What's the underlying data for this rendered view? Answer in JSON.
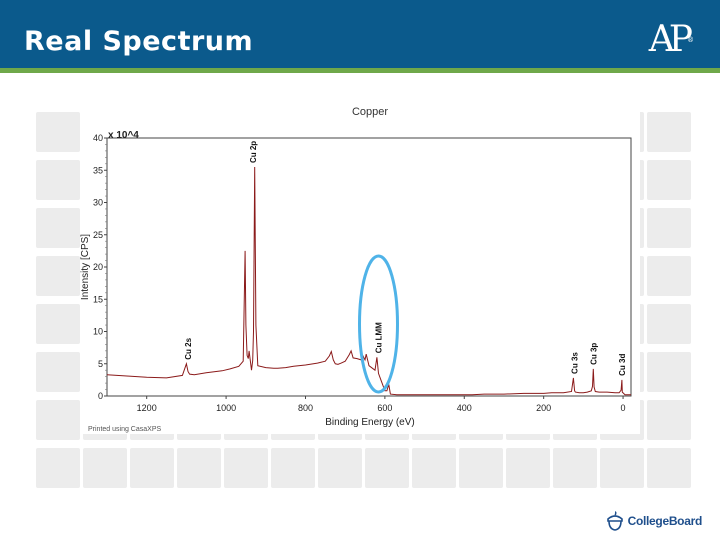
{
  "slide": {
    "title": "Real Spectrum",
    "logo_text": "AP",
    "footer_logo_text": "CollegeBoard"
  },
  "colors": {
    "header": "#0b5a8c",
    "accent_line": "#6fa84a",
    "spectrum_line": "#8b1a1a",
    "highlight_ellipse": "#4fb3e8"
  },
  "chart_data": {
    "type": "line",
    "title": "Copper",
    "xlabel": "Binding Energy (eV)",
    "ylabel": "Intensity [CPS]",
    "y_multiplier_label": "x 10^4",
    "xlim": [
      1300,
      -20
    ],
    "ylim": [
      0,
      40
    ],
    "x_reversed": true,
    "x_ticks": [
      1200,
      1000,
      800,
      600,
      400,
      200,
      0
    ],
    "y_ticks": [
      0,
      5,
      10,
      15,
      20,
      25,
      30,
      35,
      40
    ],
    "series": [
      {
        "x": [
          1300,
          1250,
          1200,
          1150,
          1110,
          1100,
          1096,
          1092,
          1080,
          1050,
          1010,
          990,
          968,
          957,
          952,
          950,
          947,
          944,
          942,
          936,
          933,
          931,
          928,
          925,
          920,
          900,
          880,
          870,
          850,
          830,
          800,
          770,
          750,
          740,
          735,
          730,
          725,
          718,
          710,
          700,
          690,
          685,
          680,
          670,
          660,
          655,
          650,
          647,
          640,
          625,
          620,
          616,
          610,
          600,
          595,
          590,
          586,
          570,
          560,
          540,
          520,
          500,
          480,
          460,
          440,
          420,
          400,
          380,
          350,
          300,
          250,
          200,
          180,
          150,
          130,
          125,
          122,
          120,
          110,
          100,
          90,
          80,
          77,
          75,
          73,
          70,
          60,
          40,
          20,
          10,
          5,
          3,
          2,
          -5,
          -20
        ],
        "y": [
          3.3,
          3.1,
          2.9,
          2.8,
          3.2,
          5.0,
          3.8,
          3.4,
          3.3,
          3.6,
          3.9,
          4.2,
          4.6,
          5.4,
          22.5,
          11.0,
          6.3,
          5.8,
          7.0,
          4.0,
          5.5,
          10.0,
          35.5,
          11.0,
          4.7,
          4.4,
          4.3,
          4.3,
          4.4,
          4.6,
          4.8,
          5.1,
          5.4,
          6.2,
          6.9,
          5.6,
          5.0,
          4.9,
          5.1,
          5.4,
          6.4,
          7.0,
          5.9,
          5.8,
          5.6,
          6.2,
          5.6,
          6.5,
          4.7,
          4.0,
          6.0,
          3.5,
          2.5,
          0.8,
          0.8,
          1.8,
          0.3,
          0.2,
          0.2,
          0.2,
          0.2,
          0.2,
          0.2,
          0.2,
          0.2,
          0.2,
          0.2,
          0.2,
          0.3,
          0.3,
          0.4,
          0.4,
          0.5,
          0.5,
          0.7,
          2.8,
          0.8,
          0.6,
          0.5,
          0.5,
          0.6,
          0.8,
          1.5,
          4.2,
          1.4,
          0.7,
          0.6,
          0.6,
          0.5,
          0.5,
          0.9,
          2.5,
          0.6,
          0.2,
          0.2
        ]
      }
    ],
    "peak_labels": [
      {
        "label": "Cu 2s",
        "x": 1096,
        "y": 5.0
      },
      {
        "label": "Cu 2p",
        "x": 932,
        "y": 35.5
      },
      {
        "label": "Cu LMM",
        "x": 616,
        "y": 6.0
      },
      {
        "label": "Cu 3s",
        "x": 122,
        "y": 2.8
      },
      {
        "label": "Cu 3p",
        "x": 75,
        "y": 4.2
      },
      {
        "label": "Cu 3d",
        "x": 3,
        "y": 2.5
      }
    ],
    "footnote": "Printed using CasaXPS",
    "highlight": {
      "region": "Cu LMM",
      "x_center": 616
    }
  }
}
